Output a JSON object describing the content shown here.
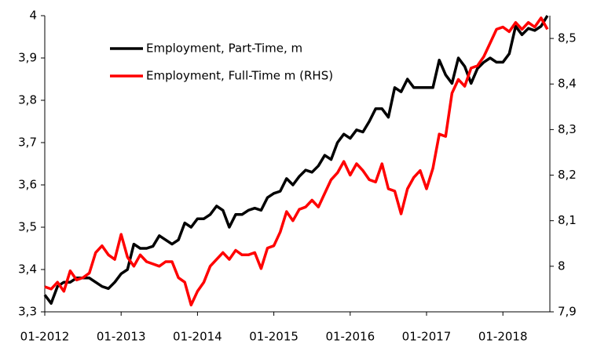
{
  "chart_data": {
    "type": "line",
    "categories": [
      "01-2012",
      null,
      null,
      null,
      null,
      null,
      null,
      null,
      null,
      null,
      null,
      null,
      "01-2013",
      null,
      null,
      null,
      null,
      null,
      null,
      null,
      null,
      null,
      null,
      null,
      "01-2014",
      null,
      null,
      null,
      null,
      null,
      null,
      null,
      null,
      null,
      null,
      null,
      "01-2015",
      null,
      null,
      null,
      null,
      null,
      null,
      null,
      null,
      null,
      null,
      null,
      "01-2016",
      null,
      null,
      null,
      null,
      null,
      null,
      null,
      null,
      null,
      null,
      null,
      "01-2017",
      null,
      null,
      null,
      null,
      null,
      null,
      null,
      null,
      null,
      null,
      null,
      "01-2018",
      null,
      null,
      null,
      null,
      null,
      null,
      null
    ],
    "series": [
      {
        "name": "Employment, Part-Time, m",
        "color": "#000000",
        "axis": "y",
        "values": [
          3.34,
          3.32,
          3.36,
          3.37,
          3.37,
          3.38,
          3.38,
          3.38,
          3.37,
          3.36,
          3.355,
          3.37,
          3.39,
          3.4,
          3.46,
          3.45,
          3.45,
          3.455,
          3.48,
          3.47,
          3.46,
          3.47,
          3.51,
          3.5,
          3.52,
          3.52,
          3.53,
          3.55,
          3.54,
          3.5,
          3.53,
          3.53,
          3.54,
          3.545,
          3.54,
          3.57,
          3.58,
          3.585,
          3.615,
          3.6,
          3.62,
          3.635,
          3.63,
          3.645,
          3.67,
          3.66,
          3.7,
          3.72,
          3.71,
          3.73,
          3.725,
          3.75,
          3.78,
          3.78,
          3.76,
          3.83,
          3.82,
          3.85,
          3.83,
          3.83,
          3.83,
          3.83,
          3.895,
          3.86,
          3.84,
          3.9,
          3.88,
          3.84,
          3.875,
          3.89,
          3.9,
          3.89,
          3.89,
          3.91,
          3.975,
          3.955,
          3.97,
          3.965,
          3.975,
          4.0
        ]
      },
      {
        "name": "Employment, Full-Time m (RHS)",
        "color": "#ff0000",
        "axis": "y2",
        "values": [
          7.955,
          7.95,
          7.965,
          7.945,
          7.99,
          7.97,
          7.975,
          7.985,
          8.03,
          8.045,
          8.025,
          8.015,
          8.07,
          8.02,
          8.0,
          8.025,
          8.01,
          8.005,
          8.0,
          8.01,
          8.01,
          7.975,
          7.965,
          7.915,
          7.945,
          7.965,
          8.0,
          8.015,
          8.03,
          8.015,
          8.035,
          8.025,
          8.025,
          8.03,
          7.995,
          8.04,
          8.045,
          8.075,
          8.12,
          8.1,
          8.125,
          8.13,
          8.145,
          8.13,
          8.16,
          8.19,
          8.205,
          8.23,
          8.2,
          8.225,
          8.21,
          8.19,
          8.185,
          8.225,
          8.17,
          8.165,
          8.115,
          8.17,
          8.195,
          8.21,
          8.17,
          8.215,
          8.29,
          8.285,
          8.38,
          8.41,
          8.395,
          8.435,
          8.44,
          8.46,
          8.49,
          8.52,
          8.525,
          8.515,
          8.535,
          8.52,
          8.535,
          8.525,
          8.545,
          8.52
        ]
      }
    ],
    "ylim": [
      3.3,
      4
    ],
    "yticks": [
      {
        "value": 3.3,
        "label": "3,3"
      },
      {
        "value": 3.4,
        "label": "3,4"
      },
      {
        "value": 3.5,
        "label": "3,5"
      },
      {
        "value": 3.6,
        "label": "3,6"
      },
      {
        "value": 3.7,
        "label": "3,7"
      },
      {
        "value": 3.8,
        "label": "3,8"
      },
      {
        "value": 3.9,
        "label": "3,9"
      },
      4
    ],
    "y2lim": [
      7.9,
      8.55
    ],
    "y2ticks": [
      {
        "value": 7.9,
        "label": "7,9"
      },
      8,
      {
        "value": 8.1,
        "label": "8,1"
      },
      {
        "value": 8.2,
        "label": "8,2"
      },
      {
        "value": 8.3,
        "label": "8,3"
      },
      {
        "value": 8.4,
        "label": "8,4"
      },
      {
        "value": 8.5,
        "label": "8,5"
      }
    ],
    "grid": false,
    "legend": "upper left"
  }
}
